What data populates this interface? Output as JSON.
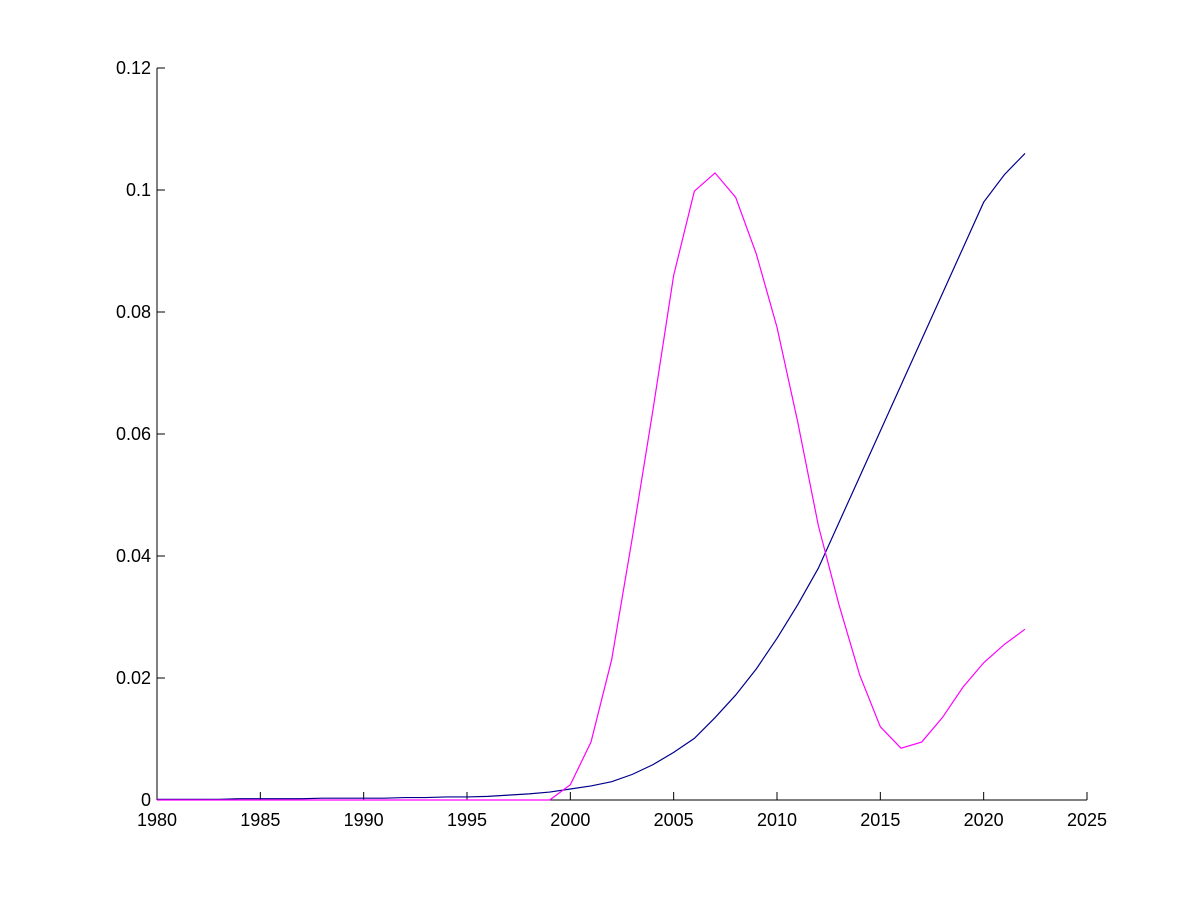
{
  "chart_data": {
    "type": "line",
    "x": [
      1980,
      1981,
      1982,
      1983,
      1984,
      1985,
      1986,
      1987,
      1988,
      1989,
      1990,
      1991,
      1992,
      1993,
      1994,
      1995,
      1996,
      1997,
      1998,
      1999,
      2000,
      2001,
      2002,
      2003,
      2004,
      2005,
      2006,
      2007,
      2008,
      2009,
      2010,
      2011,
      2012,
      2013,
      2014,
      2015,
      2016,
      2017,
      2018,
      2019,
      2020,
      2021,
      2022
    ],
    "series": [
      {
        "color": "#00008b",
        "values": [
          0.0001,
          0.0001,
          0.0001,
          0.0001,
          0.0002,
          0.0002,
          0.0002,
          0.0002,
          0.0003,
          0.0003,
          0.0003,
          0.0003,
          0.0004,
          0.0004,
          0.0005,
          0.0005,
          0.0006,
          0.0008,
          0.001,
          0.0013,
          0.0018,
          0.0023,
          0.003,
          0.0042,
          0.0058,
          0.0078,
          0.0101,
          0.0135,
          0.0172,
          0.0215,
          0.0265,
          0.032,
          0.038,
          0.0455,
          0.053,
          0.0605,
          0.068,
          0.0755,
          0.083,
          0.0905,
          0.098,
          0.1025,
          0.106
        ]
      },
      {
        "color": "#ff00ff",
        "values": [
          0,
          0,
          0,
          0,
          0,
          0,
          0,
          0,
          0,
          0,
          0,
          0,
          0,
          0,
          0,
          0,
          0,
          0,
          0,
          0,
          0.0025,
          0.0095,
          0.023,
          0.043,
          0.064,
          0.086,
          0.0998,
          0.1028,
          0.0988,
          0.0895,
          0.0775,
          0.062,
          0.045,
          0.032,
          0.0205,
          0.012,
          0.0085,
          0.0095,
          0.0135,
          0.0185,
          0.0225,
          0.0255,
          0.028
        ]
      }
    ],
    "xlim": [
      1980,
      2025
    ],
    "xticks": [
      1980,
      1985,
      1990,
      1995,
      2000,
      2005,
      2010,
      2015,
      2020,
      2025
    ],
    "ylim": [
      0,
      0.12
    ],
    "yticks": [
      0,
      0.02,
      0.04,
      0.06,
      0.08,
      0.1,
      0.12
    ]
  }
}
